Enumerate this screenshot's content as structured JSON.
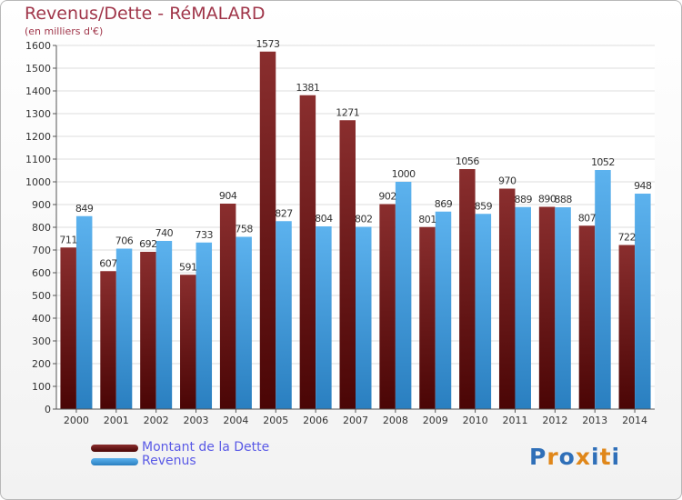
{
  "title": "Revenus/Dette - RéMALARD",
  "subtitle": "(en milliers d'€)",
  "logo": {
    "text": "Proxiti",
    "colors": [
      "#2f6fb8",
      "#e0871a",
      "#2f6fb8",
      "#e0871a",
      "#2f6fb8",
      "#e0871a",
      "#2f6fb8"
    ]
  },
  "colors": {
    "dette": "#7a1c1c",
    "revenus": "#52a8e6"
  },
  "chart_data": {
    "type": "bar",
    "title": "Revenus/Dette - RéMALARD",
    "subtitle": "(en milliers d'€)",
    "categories": [
      "2000",
      "2001",
      "2002",
      "2003",
      "2004",
      "2005",
      "2006",
      "2007",
      "2008",
      "2009",
      "2010",
      "2011",
      "2012",
      "2013",
      "2014"
    ],
    "series": [
      {
        "name": "Montant de la Dette",
        "values": [
          711,
          607,
          692,
          591,
          904,
          1573,
          1381,
          1271,
          902,
          801,
          1056,
          970,
          890,
          807,
          722
        ]
      },
      {
        "name": "Revenus",
        "values": [
          849,
          706,
          740,
          733,
          758,
          827,
          804,
          802,
          1000,
          869,
          859,
          889,
          888,
          1052,
          948
        ]
      }
    ],
    "yticks": [
      0,
      100,
      200,
      300,
      400,
      500,
      600,
      700,
      800,
      900,
      1000,
      1100,
      1200,
      1300,
      1400,
      1500,
      1600
    ],
    "ylim": [
      0,
      1600
    ],
    "grid": true,
    "legend": "bottom-left"
  }
}
